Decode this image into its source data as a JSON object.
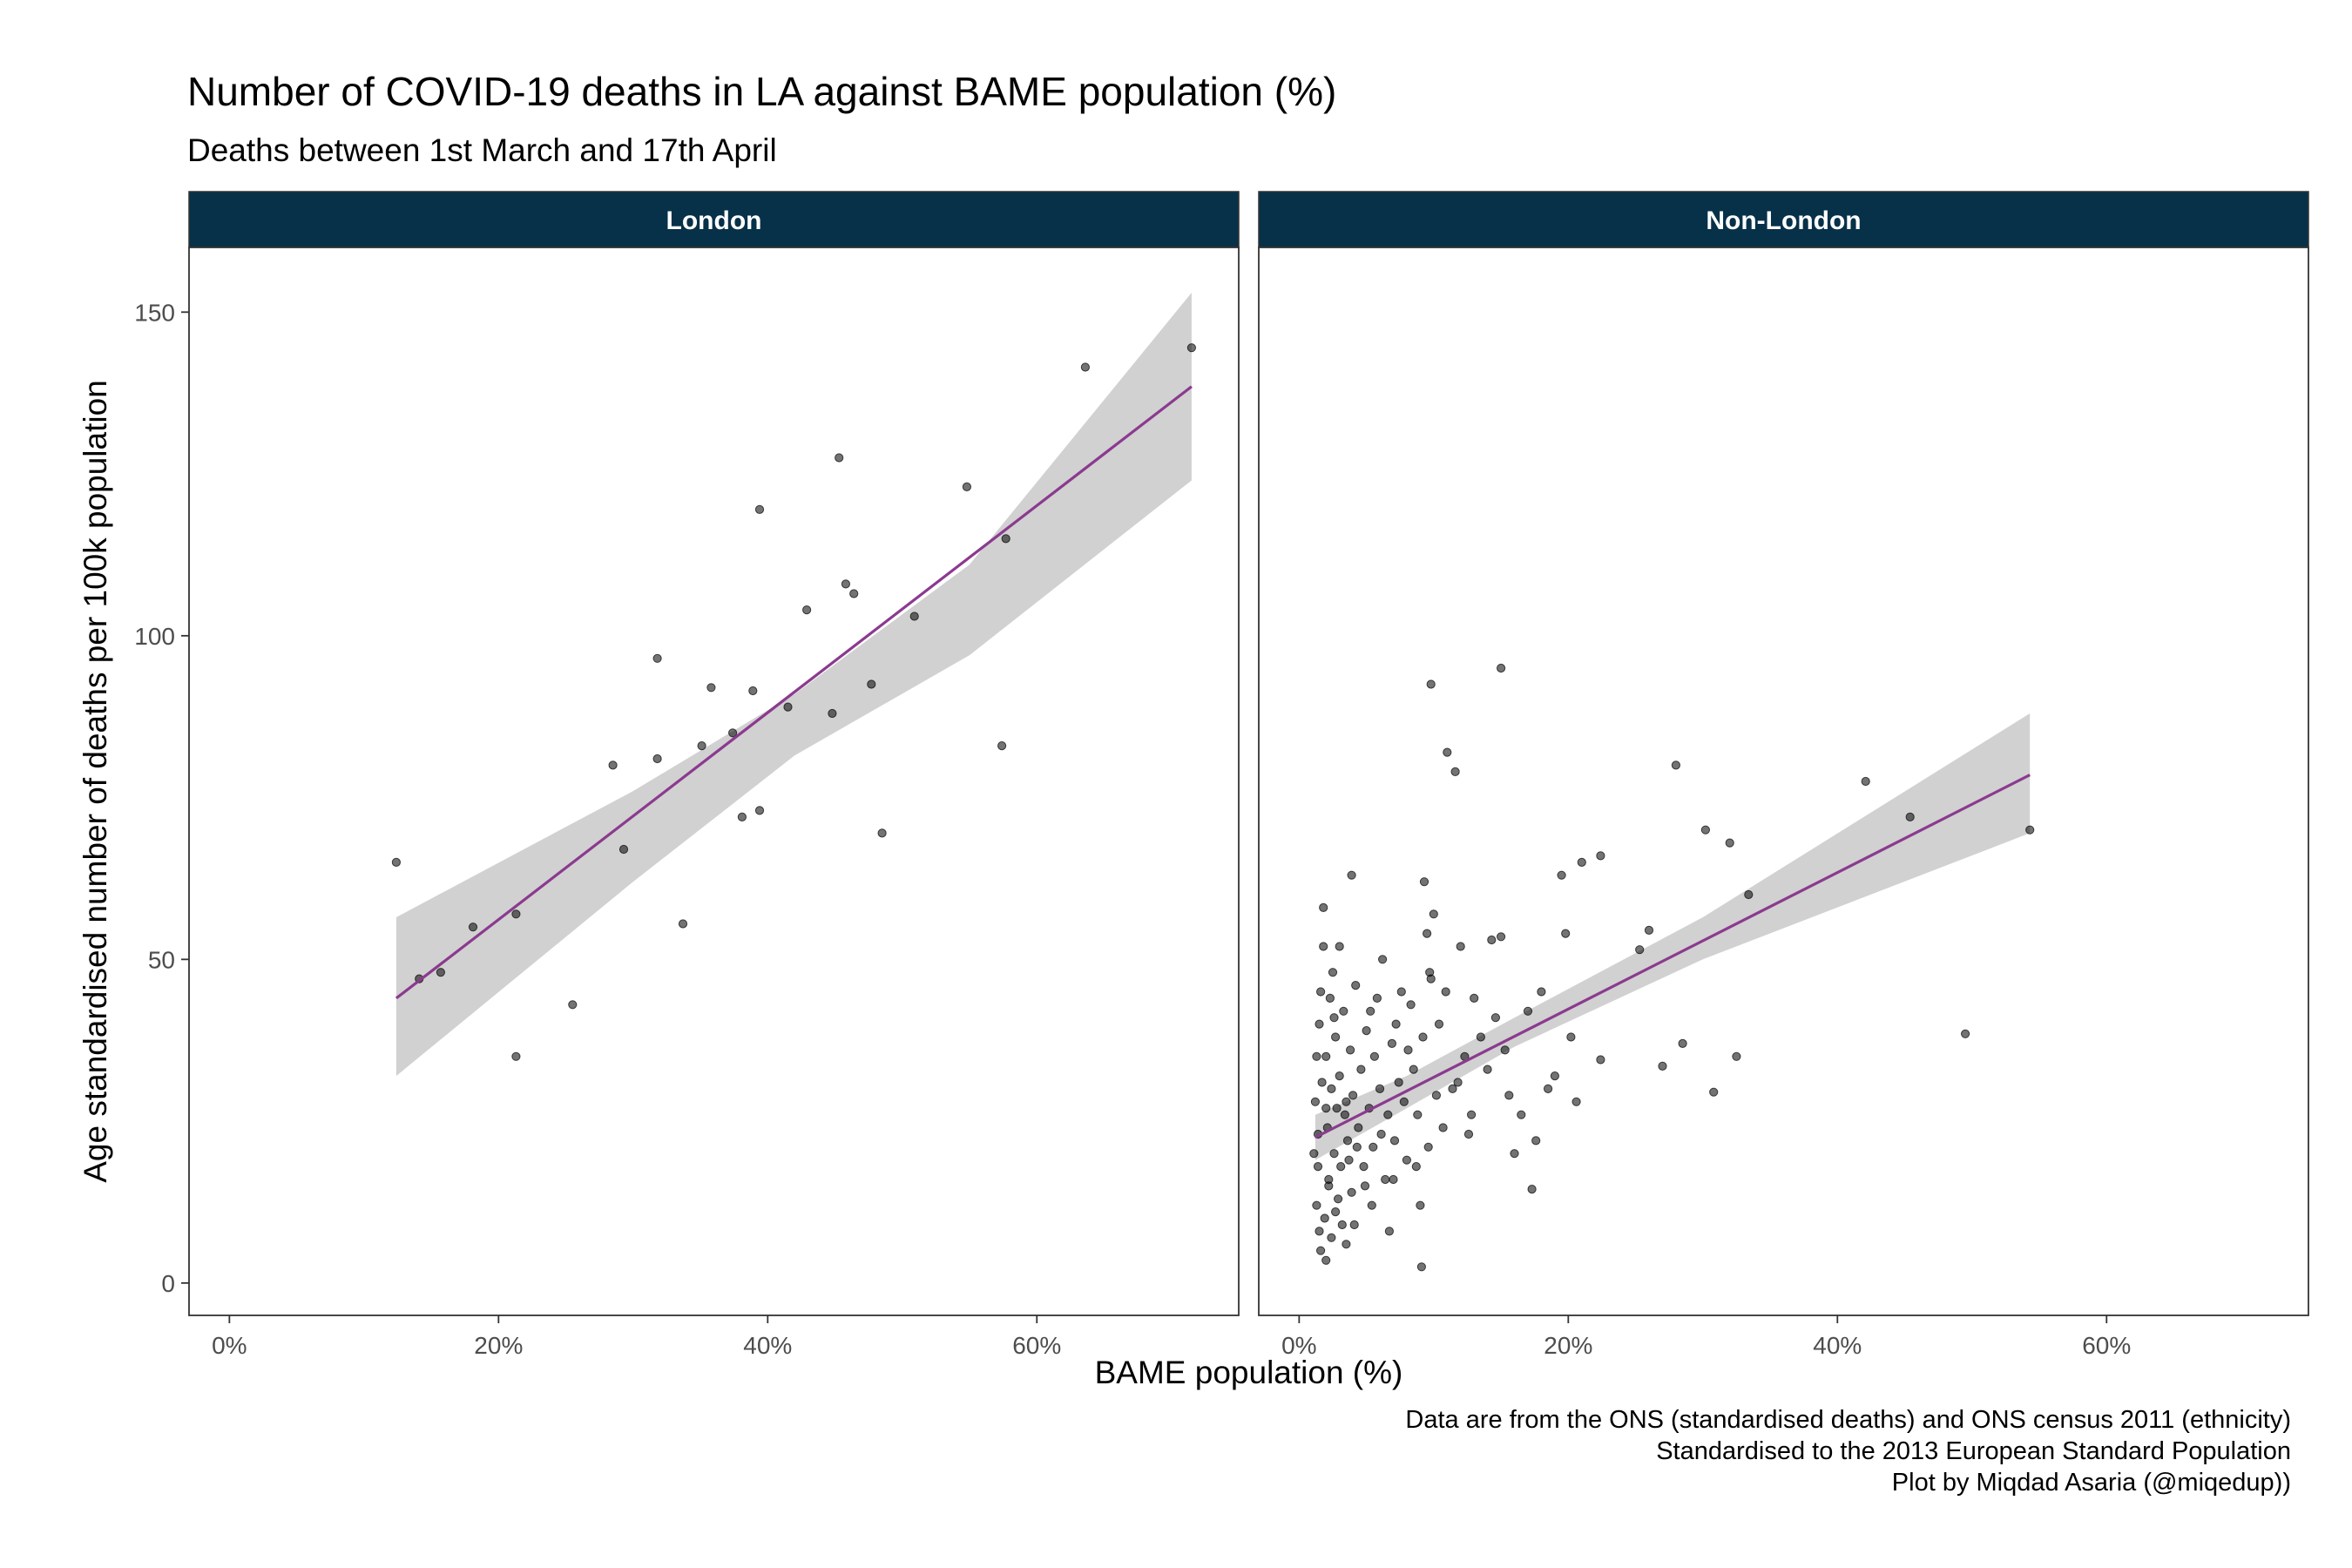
{
  "title": "Number of COVID-19 deaths in LA against BAME population (%)",
  "subtitle": "Deaths between 1st March and 17th April",
  "caption": [
    "Data are from the ONS (standardised deaths) and ONS census 2011 (ethnicity)",
    "Standardised to the 2013 European Standard Population",
    "Plot by Miqdad Asaria (@miqedup))"
  ],
  "colors": {
    "strip": "#073149",
    "fit_line": "#8b3a8f",
    "ci_band": "#cccccc",
    "points": "#000000"
  },
  "chart_data": {
    "type": "scatter",
    "title": "Number of COVID-19 deaths in LA against BAME population (%)",
    "subtitle": "Deaths between 1st March and 17th April",
    "xlabel": "BAME population (%)",
    "ylabel": "Age standardised number of deaths per 100k population",
    "xlim": [
      -3,
      75
    ],
    "ylim": [
      -5,
      160
    ],
    "x_ticks": [
      0,
      20,
      40,
      60
    ],
    "x_tick_labels": [
      "0%",
      "20%",
      "40%",
      "60%"
    ],
    "y_ticks": [
      0,
      50,
      100,
      150
    ],
    "y_tick_labels": [
      "0",
      "50",
      "100",
      "150"
    ],
    "grid": false,
    "facets": [
      {
        "name": "London",
        "points": [
          [
            12.4,
            65
          ],
          [
            14.1,
            47
          ],
          [
            15.7,
            48
          ],
          [
            18.1,
            55
          ],
          [
            21.3,
            57
          ],
          [
            21.3,
            35
          ],
          [
            25.5,
            43
          ],
          [
            28.5,
            80
          ],
          [
            29.3,
            67
          ],
          [
            31.8,
            96.5
          ],
          [
            31.8,
            81
          ],
          [
            33.7,
            55.5
          ],
          [
            35.1,
            83
          ],
          [
            35.8,
            92
          ],
          [
            37.4,
            85
          ],
          [
            38.1,
            72
          ],
          [
            38.9,
            91.5
          ],
          [
            39.4,
            119.5
          ],
          [
            39.4,
            73
          ],
          [
            41.5,
            89
          ],
          [
            42.9,
            104
          ],
          [
            44.8,
            88
          ],
          [
            45.3,
            127.5
          ],
          [
            45.8,
            108
          ],
          [
            46.4,
            106.5
          ],
          [
            47.7,
            92.5
          ],
          [
            48.5,
            69.5
          ],
          [
            50.9,
            103
          ],
          [
            54.8,
            123
          ],
          [
            57.4,
            83
          ],
          [
            57.7,
            115
          ],
          [
            63.6,
            141.5
          ],
          [
            71.5,
            144.5
          ]
        ],
        "fit": {
          "x": [
            12.4,
            71.5
          ],
          "y": [
            44,
            138.5
          ]
        },
        "ci": {
          "x": [
            12.4,
            30,
            42,
            55,
            71.5
          ],
          "upper": [
            56.5,
            76,
            91,
            111,
            153
          ],
          "lower": [
            32,
            62,
            81.5,
            97,
            124
          ]
        }
      },
      {
        "name": "Non-London",
        "points": [
          [
            1.2,
            28
          ],
          [
            1.4,
            23
          ],
          [
            1.3,
            12
          ],
          [
            1.5,
            8
          ],
          [
            1.6,
            5
          ],
          [
            1.4,
            18
          ],
          [
            1.8,
            52
          ],
          [
            1.5,
            40
          ],
          [
            1.8,
            58
          ],
          [
            2.0,
            35
          ],
          [
            2.1,
            24
          ],
          [
            2.2,
            15
          ],
          [
            2.3,
            44
          ],
          [
            2.4,
            30
          ],
          [
            1.9,
            10
          ],
          [
            2.6,
            20
          ],
          [
            2.7,
            38
          ],
          [
            2.8,
            27
          ],
          [
            2.5,
            48
          ],
          [
            3.0,
            32
          ],
          [
            3.1,
            18
          ],
          [
            3.2,
            9
          ],
          [
            3.3,
            42
          ],
          [
            3.4,
            26
          ],
          [
            3.6,
            22
          ],
          [
            3.8,
            36
          ],
          [
            3.9,
            14
          ],
          [
            4.0,
            29
          ],
          [
            4.2,
            46
          ],
          [
            4.4,
            24
          ],
          [
            4.6,
            33
          ],
          [
            4.8,
            18
          ],
          [
            5.0,
            39
          ],
          [
            5.2,
            27
          ],
          [
            5.4,
            12
          ],
          [
            5.5,
            21
          ],
          [
            5.8,
            44
          ],
          [
            6.0,
            30
          ],
          [
            6.2,
            50
          ],
          [
            6.4,
            16
          ],
          [
            6.6,
            26
          ],
          [
            6.9,
            37
          ],
          [
            7.1,
            22
          ],
          [
            7.4,
            31
          ],
          [
            7.6,
            45
          ],
          [
            7.8,
            28
          ],
          [
            8.0,
            19
          ],
          [
            8.3,
            43
          ],
          [
            8.5,
            33
          ],
          [
            8.8,
            26
          ],
          [
            9.0,
            12
          ],
          [
            9.2,
            38
          ],
          [
            9.3,
            62
          ],
          [
            9.5,
            54
          ],
          [
            9.6,
            21
          ],
          [
            9.8,
            47
          ],
          [
            10.0,
            57
          ],
          [
            10.2,
            29
          ],
          [
            10.4,
            40
          ],
          [
            10.7,
            24
          ],
          [
            11.0,
            82
          ],
          [
            11.4,
            30
          ],
          [
            11.6,
            79
          ],
          [
            12.0,
            52
          ],
          [
            12.3,
            35
          ],
          [
            12.6,
            23
          ],
          [
            13.0,
            44
          ],
          [
            13.5,
            38
          ],
          [
            14.0,
            33
          ],
          [
            14.3,
            53
          ],
          [
            14.6,
            41
          ],
          [
            15.0,
            53.5
          ],
          [
            15.3,
            36
          ],
          [
            15.6,
            29
          ],
          [
            16.0,
            20
          ],
          [
            16.5,
            26
          ],
          [
            17.0,
            42
          ],
          [
            17.3,
            14.5
          ],
          [
            17.6,
            22
          ],
          [
            18.0,
            45
          ],
          [
            18.5,
            30
          ],
          [
            19.0,
            32
          ],
          [
            19.5,
            63
          ],
          [
            19.8,
            54
          ],
          [
            20.2,
            38
          ],
          [
            20.6,
            28
          ],
          [
            21.0,
            65
          ],
          [
            22.4,
            66
          ],
          [
            22.4,
            34.5
          ],
          [
            25.3,
            51.5
          ],
          [
            26.0,
            54.5
          ],
          [
            27.0,
            33.5
          ],
          [
            28.0,
            80
          ],
          [
            28.5,
            37
          ],
          [
            30.2,
            70
          ],
          [
            30.8,
            29.5
          ],
          [
            32.0,
            68
          ],
          [
            32.5,
            35
          ],
          [
            33.4,
            60
          ],
          [
            42.1,
            77.5
          ],
          [
            45.4,
            72
          ],
          [
            49.5,
            38.5
          ],
          [
            54.3,
            70
          ],
          [
            9.8,
            92.5
          ],
          [
            15.0,
            95
          ],
          [
            9.1,
            2.5
          ],
          [
            3.9,
            63
          ],
          [
            2.0,
            3.5
          ],
          [
            2.2,
            16
          ],
          [
            2.4,
            7
          ],
          [
            2.9,
            13
          ],
          [
            3.5,
            6
          ],
          [
            1.7,
            31
          ],
          [
            2.6,
            41
          ],
          [
            3.7,
            19
          ],
          [
            4.1,
            9
          ],
          [
            4.9,
            15
          ],
          [
            5.6,
            35
          ],
          [
            6.7,
            8
          ],
          [
            7.2,
            40
          ],
          [
            8.7,
            18
          ],
          [
            10.9,
            45
          ],
          [
            12.8,
            26
          ],
          [
            1.1,
            20
          ],
          [
            1.3,
            35
          ],
          [
            1.6,
            45
          ],
          [
            2.0,
            27
          ],
          [
            2.7,
            11
          ],
          [
            3.0,
            52
          ],
          [
            3.5,
            28
          ],
          [
            4.3,
            21
          ],
          [
            5.3,
            42
          ],
          [
            6.1,
            23
          ],
          [
            7.0,
            16
          ],
          [
            8.1,
            36
          ],
          [
            9.7,
            48
          ],
          [
            11.8,
            31
          ]
        ],
        "fit": {
          "x": [
            1.2,
            54.3
          ],
          "y": [
            22.5,
            78.5
          ]
        },
        "ci": {
          "x": [
            1.2,
            8,
            16,
            30,
            54.3
          ],
          "upper": [
            26,
            32,
            41,
            56.5,
            88
          ],
          "lower": [
            19,
            27,
            36.5,
            50,
            69.5
          ]
        }
      }
    ]
  }
}
